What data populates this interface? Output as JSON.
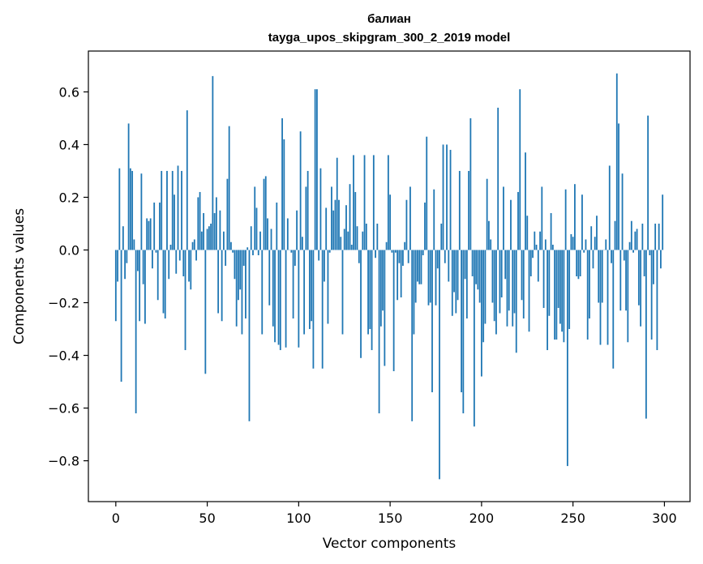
{
  "chart_data": {
    "type": "bar",
    "title": "балиан",
    "subtitle": "tayga_upos_skipgram_300_2_2019 model",
    "xlabel": "Vector components",
    "ylabel": "Components values",
    "xlim": [
      -15,
      314
    ],
    "ylim": [
      -0.955,
      0.755
    ],
    "xticks": [
      0,
      50,
      100,
      150,
      200,
      250,
      300
    ],
    "xtick_labels": [
      "0",
      "50",
      "100",
      "150",
      "200",
      "250",
      "300"
    ],
    "yticks": [
      0.6,
      0.4,
      0.2,
      0.0,
      -0.2,
      -0.4,
      -0.6,
      -0.8
    ],
    "ytick_labels": [
      "0.6",
      "0.4",
      "0.2",
      "0.0",
      "−0.2",
      "−0.4",
      "−0.6",
      "−0.8"
    ],
    "grid": false,
    "color": "#1f77b4",
    "values": [
      -0.27,
      -0.12,
      0.31,
      -0.5,
      0.09,
      -0.11,
      -0.05,
      0.48,
      0.31,
      0.3,
      0.04,
      -0.62,
      -0.08,
      -0.27,
      0.29,
      -0.13,
      -0.28,
      0.12,
      0.11,
      0.12,
      -0.07,
      0.18,
      -0.01,
      -0.19,
      0.18,
      0.3,
      -0.24,
      -0.26,
      0.3,
      -0.11,
      0.02,
      0.3,
      0.21,
      -0.09,
      0.32,
      -0.04,
      0.3,
      -0.1,
      -0.38,
      0.53,
      -0.12,
      -0.15,
      0.03,
      0.04,
      -0.04,
      0.2,
      0.22,
      0.07,
      0.14,
      -0.47,
      0.08,
      0.09,
      0.1,
      0.66,
      0.14,
      0.2,
      -0.24,
      0.15,
      -0.27,
      0.07,
      -0.06,
      0.27,
      0.47,
      0.03,
      -0.01,
      -0.11,
      -0.29,
      -0.19,
      -0.15,
      -0.32,
      -0.06,
      -0.26,
      0.01,
      -0.65,
      0.09,
      -0.02,
      0.24,
      0.16,
      -0.02,
      0.07,
      -0.32,
      0.27,
      0.28,
      0.12,
      -0.21,
      0.08,
      -0.29,
      -0.35,
      0.18,
      -0.36,
      -0.38,
      0.5,
      0.42,
      -0.37,
      0.12,
      0.0,
      -0.01,
      -0.26,
      -0.06,
      0.15,
      -0.37,
      0.45,
      0.05,
      -0.32,
      0.24,
      0.3,
      -0.3,
      -0.27,
      -0.45,
      0.61,
      0.61,
      -0.04,
      0.31,
      -0.45,
      -0.12,
      0.16,
      -0.28,
      -0.01,
      0.24,
      0.15,
      0.19,
      0.35,
      0.19,
      0.05,
      -0.32,
      0.08,
      0.17,
      0.07,
      0.25,
      0.02,
      0.36,
      0.22,
      0.09,
      -0.05,
      -0.41,
      0.07,
      0.36,
      0.1,
      -0.32,
      -0.3,
      -0.38,
      0.36,
      -0.03,
      0.1,
      -0.62,
      -0.29,
      -0.23,
      -0.44,
      0.03,
      0.36,
      0.21,
      -0.01,
      -0.46,
      -0.01,
      -0.19,
      -0.05,
      -0.18,
      -0.06,
      0.03,
      0.19,
      -0.05,
      0.24,
      -0.65,
      -0.32,
      -0.2,
      -0.12,
      -0.13,
      -0.13,
      -0.02,
      0.18,
      0.43,
      -0.21,
      -0.2,
      -0.54,
      0.23,
      -0.21,
      -0.07,
      -0.87,
      0.1,
      0.4,
      -0.05,
      0.4,
      -0.12,
      0.38,
      -0.25,
      -0.16,
      -0.24,
      -0.19,
      0.3,
      -0.54,
      -0.62,
      -0.11,
      -0.26,
      0.3,
      0.5,
      -0.1,
      -0.67,
      -0.13,
      -0.15,
      -0.2,
      -0.48,
      -0.35,
      -0.28,
      0.27,
      0.11,
      0.04,
      -0.2,
      -0.27,
      -0.32,
      0.54,
      -0.24,
      -0.18,
      0.24,
      -0.11,
      -0.29,
      -0.23,
      0.19,
      -0.29,
      -0.24,
      -0.39,
      0.22,
      0.61,
      -0.19,
      -0.26,
      0.37,
      0.13,
      -0.31,
      -0.1,
      -0.03,
      0.07,
      0.02,
      -0.12,
      0.07,
      0.24,
      -0.22,
      0.04,
      -0.38,
      -0.25,
      0.14,
      0.02,
      -0.34,
      -0.34,
      -0.22,
      -0.28,
      -0.31,
      -0.35,
      0.23,
      -0.82,
      -0.3,
      0.06,
      0.05,
      0.25,
      -0.1,
      -0.11,
      -0.1,
      0.21,
      -0.01,
      0.04,
      -0.34,
      -0.26,
      0.09,
      -0.07,
      0.05,
      0.13,
      -0.2,
      -0.36,
      -0.2,
      0.0,
      0.04,
      -0.36,
      0.32,
      -0.05,
      -0.45,
      0.11,
      0.67,
      0.48,
      -0.23,
      0.29,
      -0.04,
      -0.23,
      -0.35,
      0.03,
      0.11,
      -0.01,
      0.07,
      0.08,
      -0.21,
      -0.29,
      0.1,
      -0.1,
      -0.64,
      0.51,
      -0.02,
      -0.34,
      -0.13,
      0.1,
      -0.38,
      0.1,
      -0.07,
      0.21
    ]
  }
}
